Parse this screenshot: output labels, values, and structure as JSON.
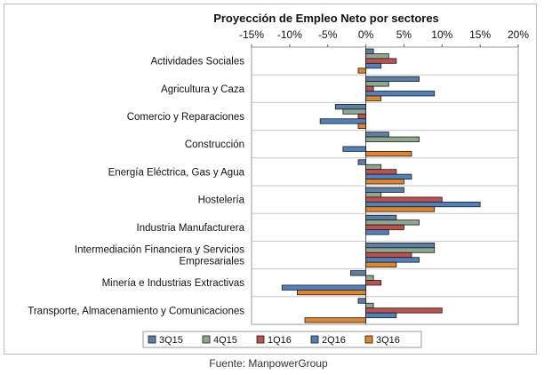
{
  "source_text": "Fuente: ManpowerGroup",
  "chart_data": {
    "type": "bar",
    "orientation": "horizontal",
    "title": "Proyección de Empleo Neto por sectores",
    "xlim": [
      -15,
      20
    ],
    "ticks": [
      -15,
      -10,
      -5,
      0,
      5,
      10,
      15,
      20
    ],
    "tick_labels": [
      "-15%",
      "-10%",
      "-5%",
      "0%",
      "5%",
      "10%",
      "15%",
      "20%"
    ],
    "axis_position": "top",
    "grid": "horizontal-category-separators",
    "legend_position": "bottom",
    "categories": [
      "Actividades Sociales",
      "Agricultura y Caza",
      "Comercio y Reparaciones",
      "Construcción",
      "Energía Eléctrica, Gas y Agua",
      "Hostelería",
      "Industria Manufacturera",
      "Intermediación Financiera y Servicios Empresariales",
      "Minería e Industrias Extractivas",
      "Transporte, Almacenamiento y Comunicaciones"
    ],
    "category_lines": [
      [
        "Actividades Sociales"
      ],
      [
        "Agricultura y Caza"
      ],
      [
        "Comercio y Reparaciones"
      ],
      [
        "Construcción"
      ],
      [
        "Energía Eléctrica, Gas y Agua"
      ],
      [
        "Hostelería"
      ],
      [
        "Industria Manufacturera"
      ],
      [
        "Intermediación Financiera y Servicios",
        "Empresariales"
      ],
      [
        "Minería e Industrias Extractivas"
      ],
      [
        "Transporte, Almacenamiento y Comunicaciones"
      ]
    ],
    "series": [
      {
        "name": "3Q15",
        "color": "#5b7fa6",
        "values": [
          1,
          7,
          -4,
          3,
          -1,
          5,
          4,
          9,
          -2,
          -1
        ]
      },
      {
        "name": "4Q15",
        "color": "#8fa68f",
        "values": [
          3,
          3,
          -3,
          7,
          2,
          2,
          7,
          9,
          1,
          1
        ]
      },
      {
        "name": "1Q16",
        "color": "#c0504d",
        "values": [
          4,
          1,
          -1,
          0,
          4,
          10,
          5,
          6,
          2,
          10
        ]
      },
      {
        "name": "2Q16",
        "color": "#4f81bd",
        "values": [
          2,
          9,
          -6,
          -3,
          6,
          15,
          3,
          7,
          -11,
          4
        ]
      },
      {
        "name": "3Q16",
        "color": "#e0852d",
        "values": [
          -1,
          2,
          -1,
          6,
          5,
          9,
          0,
          4,
          -9,
          -8
        ]
      }
    ]
  }
}
